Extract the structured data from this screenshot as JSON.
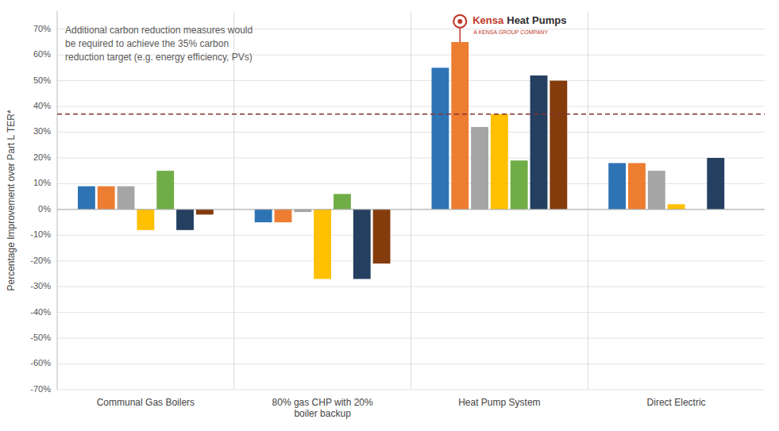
{
  "chart_data": {
    "type": "bar",
    "categories": [
      "Communal Gas Boilers",
      "80% gas CHP with 20%\nboiler backup",
      "Heat Pump System",
      "Direct Electric"
    ],
    "series": [
      {
        "color": "#2E74B5",
        "values": [
          9,
          -5,
          55,
          18
        ]
      },
      {
        "color": "#ED7D31",
        "values": [
          9,
          -5,
          65,
          18
        ]
      },
      {
        "color": "#A5A5A5",
        "values": [
          9,
          -1,
          32,
          15
        ]
      },
      {
        "color": "#FFC000",
        "values": [
          -8,
          -27,
          37,
          2
        ]
      },
      {
        "color": "#70AD47",
        "values": [
          15,
          6,
          19,
          null
        ]
      },
      {
        "color": "#243F60",
        "values": [
          -8,
          -27,
          52,
          20
        ]
      },
      {
        "color": "#843C0C",
        "values": [
          -2,
          -21,
          50,
          null
        ]
      }
    ],
    "ylabel": "Percentage Improvement over Part L TER*",
    "ylim": [
      -70,
      77
    ],
    "yticks": [
      {
        "value": -70,
        "label": "-70%"
      },
      {
        "value": -60,
        "label": "-60%"
      },
      {
        "value": -50,
        "label": "-50%"
      },
      {
        "value": -40,
        "label": "-40%"
      },
      {
        "value": -30,
        "label": "-30%"
      },
      {
        "value": -20,
        "label": "-20%"
      },
      {
        "value": -10,
        "label": "-10%"
      },
      {
        "value": 0,
        "label": "0%"
      },
      {
        "value": 10,
        "label": "10%"
      },
      {
        "value": 20,
        "label": "20%"
      },
      {
        "value": 30,
        "label": "30%"
      },
      {
        "value": 40,
        "label": "40%"
      },
      {
        "value": 50,
        "label": "50%"
      },
      {
        "value": 60,
        "label": "60%"
      },
      {
        "value": 70,
        "label": "70%"
      }
    ],
    "grid": true,
    "reference_lines": [
      {
        "value": 37,
        "color": "#843232",
        "line_style": "dashed"
      }
    ],
    "annotations": [
      {
        "text": "Additional carbon reduction measures would\nbe required to achieve the 35% carbon\nreduction target (e.g. energy efficiency, PVs)",
        "color": "#595959"
      },
      {
        "text": "Kensa",
        "color": "#C0392B",
        "series": 1,
        "category": 2
      },
      {
        "text": "Heat Pumps",
        "color": "#2C2C2C",
        "series": 1,
        "category": 2
      },
      {
        "text": "A KENSA GROUP COMPANY",
        "color": "#C0392B",
        "series": 1,
        "category": 2
      }
    ]
  }
}
